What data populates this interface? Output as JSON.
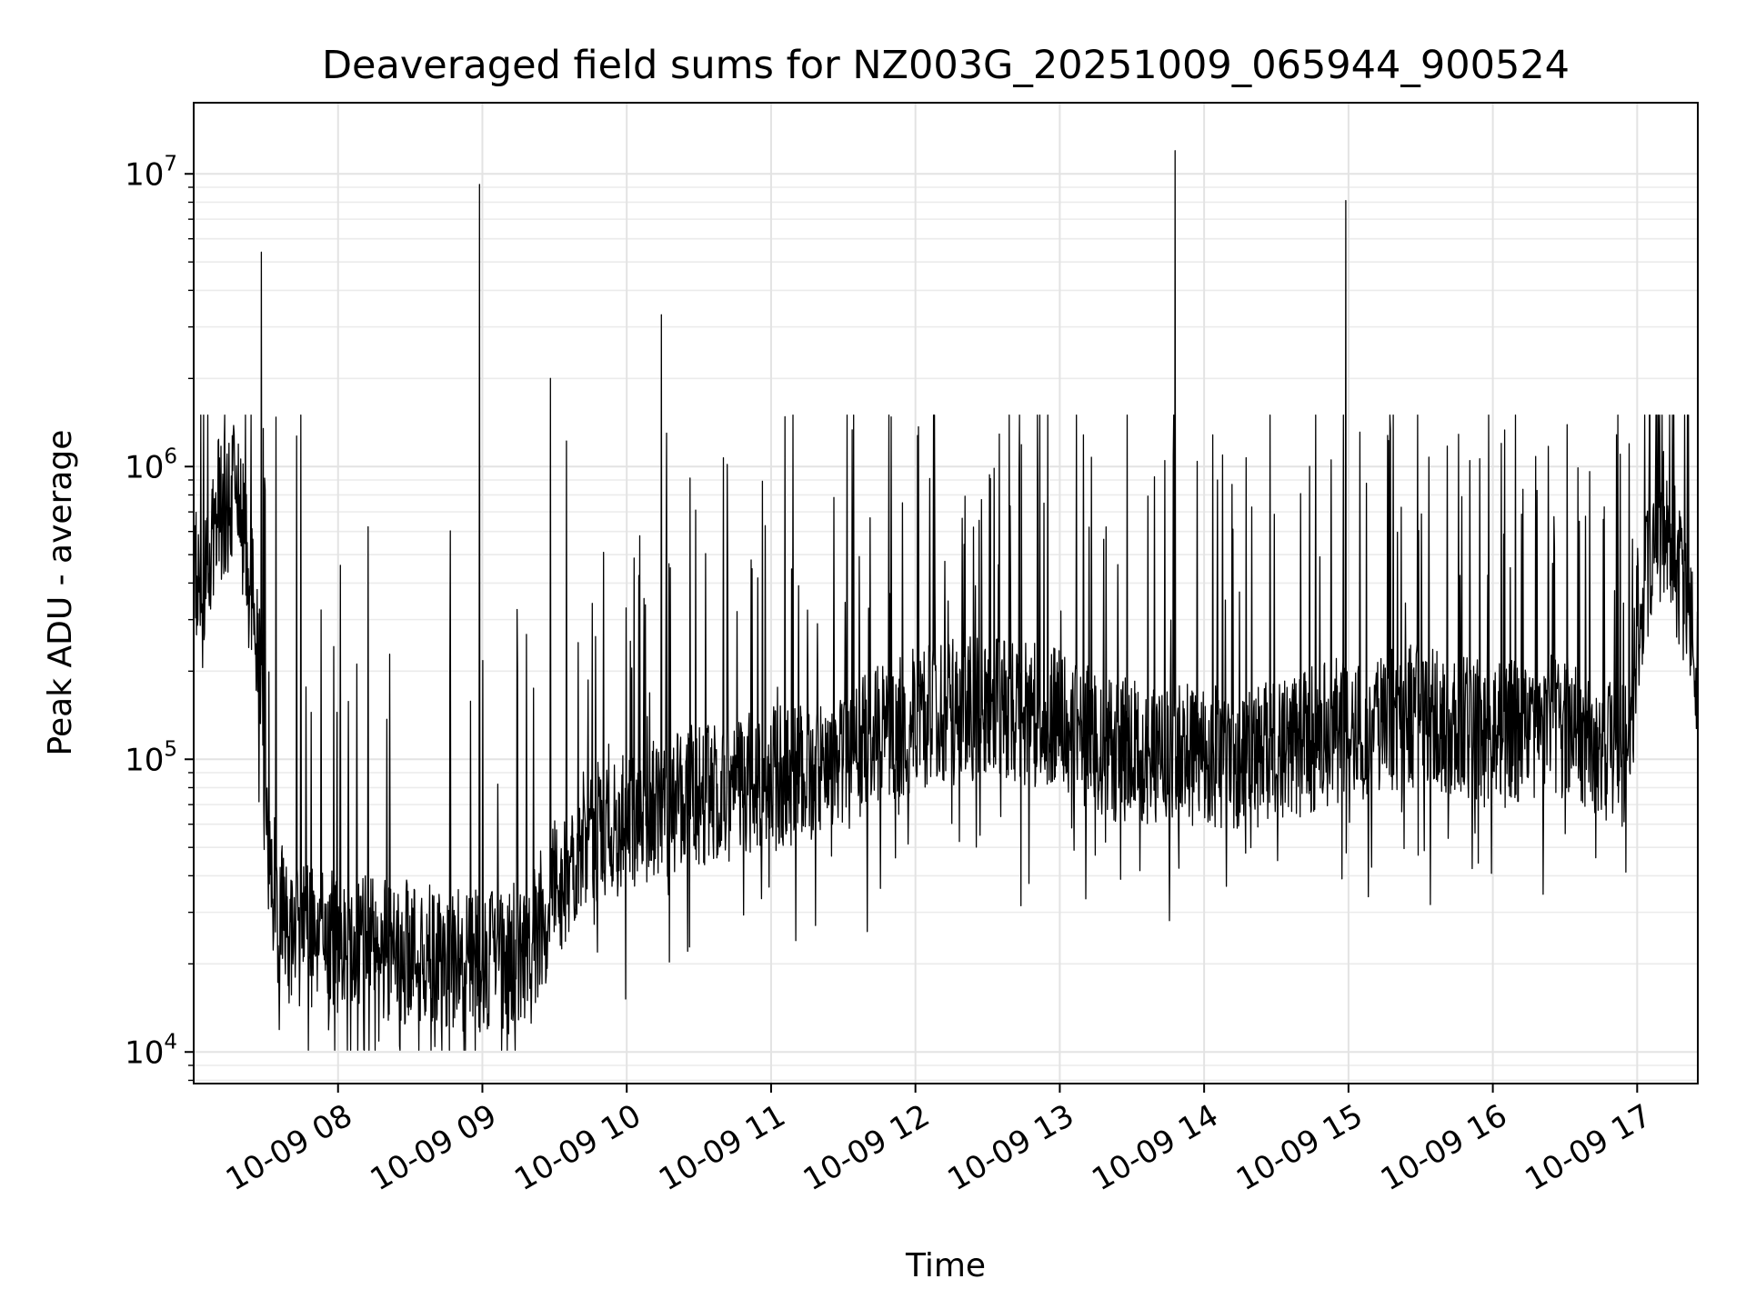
{
  "chart_data": {
    "type": "line",
    "title": "Deaveraged field sums for NZ003G_20251009_065944_900524",
    "xlabel": "Time",
    "ylabel": "Peak ADU - average",
    "yscale": "log",
    "ylim": [
      7800,
      17500000
    ],
    "xlim_hours": [
      7.0,
      17.42
    ],
    "grid": true,
    "legend": "none",
    "x_ticks": [
      {
        "hour": 8,
        "label": "10-09 08"
      },
      {
        "hour": 9,
        "label": "10-09 09"
      },
      {
        "hour": 10,
        "label": "10-09 10"
      },
      {
        "hour": 11,
        "label": "10-09 11"
      },
      {
        "hour": 12,
        "label": "10-09 12"
      },
      {
        "hour": 13,
        "label": "10-09 13"
      },
      {
        "hour": 14,
        "label": "10-09 14"
      },
      {
        "hour": 15,
        "label": "10-09 15"
      },
      {
        "hour": 16,
        "label": "10-09 16"
      },
      {
        "hour": 17,
        "label": "10-09 17"
      }
    ],
    "y_ticks": [
      {
        "value": 10000,
        "base": "10",
        "exp": "4"
      },
      {
        "value": 100000,
        "base": "10",
        "exp": "5"
      },
      {
        "value": 1000000,
        "base": "10",
        "exp": "6"
      },
      {
        "value": 10000000,
        "base": "10",
        "exp": "7"
      }
    ],
    "series": [
      {
        "name": "deaveraged field sum",
        "color": "#000000",
        "baseline_profile": [
          {
            "hour": 7.0,
            "value": 500000
          },
          {
            "hour": 7.05,
            "value": 300000
          },
          {
            "hour": 7.15,
            "value": 700000
          },
          {
            "hour": 7.3,
            "value": 800000
          },
          {
            "hour": 7.45,
            "value": 250000
          },
          {
            "hour": 7.53,
            "value": 40000
          },
          {
            "hour": 7.65,
            "value": 25000
          },
          {
            "hour": 8.0,
            "value": 24000
          },
          {
            "hour": 8.5,
            "value": 22000
          },
          {
            "hour": 9.0,
            "value": 20000
          },
          {
            "hour": 9.3,
            "value": 22000
          },
          {
            "hour": 9.5,
            "value": 35000
          },
          {
            "hour": 9.7,
            "value": 55000
          },
          {
            "hour": 10.0,
            "value": 62000
          },
          {
            "hour": 10.5,
            "value": 75000
          },
          {
            "hour": 11.0,
            "value": 85000
          },
          {
            "hour": 11.5,
            "value": 100000
          },
          {
            "hour": 12.0,
            "value": 140000
          },
          {
            "hour": 12.5,
            "value": 150000
          },
          {
            "hour": 13.0,
            "value": 140000
          },
          {
            "hour": 13.3,
            "value": 110000
          },
          {
            "hour": 14.0,
            "value": 100000
          },
          {
            "hour": 14.5,
            "value": 105000
          },
          {
            "hour": 15.0,
            "value": 130000
          },
          {
            "hour": 15.5,
            "value": 140000
          },
          {
            "hour": 16.0,
            "value": 120000
          },
          {
            "hour": 16.5,
            "value": 130000
          },
          {
            "hour": 16.95,
            "value": 100000
          },
          {
            "hour": 17.0,
            "value": 300000
          },
          {
            "hour": 17.2,
            "value": 700000
          },
          {
            "hour": 17.3,
            "value": 400000
          },
          {
            "hour": 17.42,
            "value": 200000
          }
        ],
        "peaks": [
          {
            "hour": 7.47,
            "value": 5400000
          },
          {
            "hour": 8.98,
            "value": 9200000
          },
          {
            "hour": 9.47,
            "value": 2000000
          },
          {
            "hour": 10.24,
            "value": 3300000
          },
          {
            "hour": 13.8,
            "value": 12000000
          },
          {
            "hour": 14.98,
            "value": 8100000
          }
        ]
      }
    ]
  }
}
